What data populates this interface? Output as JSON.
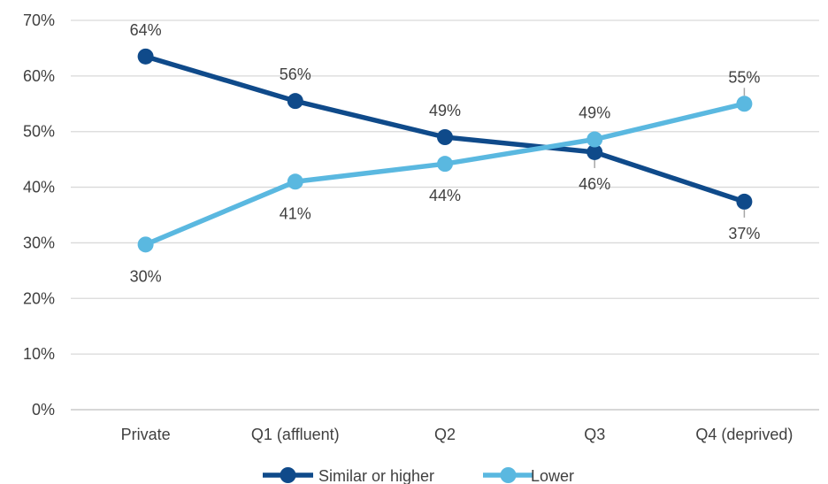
{
  "chart_data": {
    "type": "line",
    "categories": [
      "Private",
      "Q1 (affluent)",
      "Q2",
      "Q3",
      "Q4 (deprived)"
    ],
    "ylim": [
      0,
      70
    ],
    "yticks": [
      0,
      10,
      20,
      30,
      40,
      50,
      60,
      70
    ],
    "ytick_labels": [
      "0%",
      "10%",
      "20%",
      "30%",
      "40%",
      "50%",
      "60%",
      "70%"
    ],
    "grid": true,
    "legend_position": "bottom",
    "series": [
      {
        "name": "Similar or higher",
        "color": "#0f4a8a",
        "values": [
          63.5,
          55.5,
          49,
          46.3,
          37.4
        ],
        "labels": [
          "64%",
          "56%",
          "49%",
          "46%",
          "37%"
        ],
        "label_side": [
          "above",
          "above",
          "above",
          "below",
          "below"
        ]
      },
      {
        "name": "Lower",
        "color": "#5ab8e0",
        "values": [
          29.7,
          41,
          44.2,
          48.6,
          55
        ],
        "labels": [
          "30%",
          "41%",
          "44%",
          "49%",
          "55%"
        ],
        "label_side": [
          "below",
          "below",
          "below",
          "above",
          "above"
        ]
      }
    ]
  }
}
